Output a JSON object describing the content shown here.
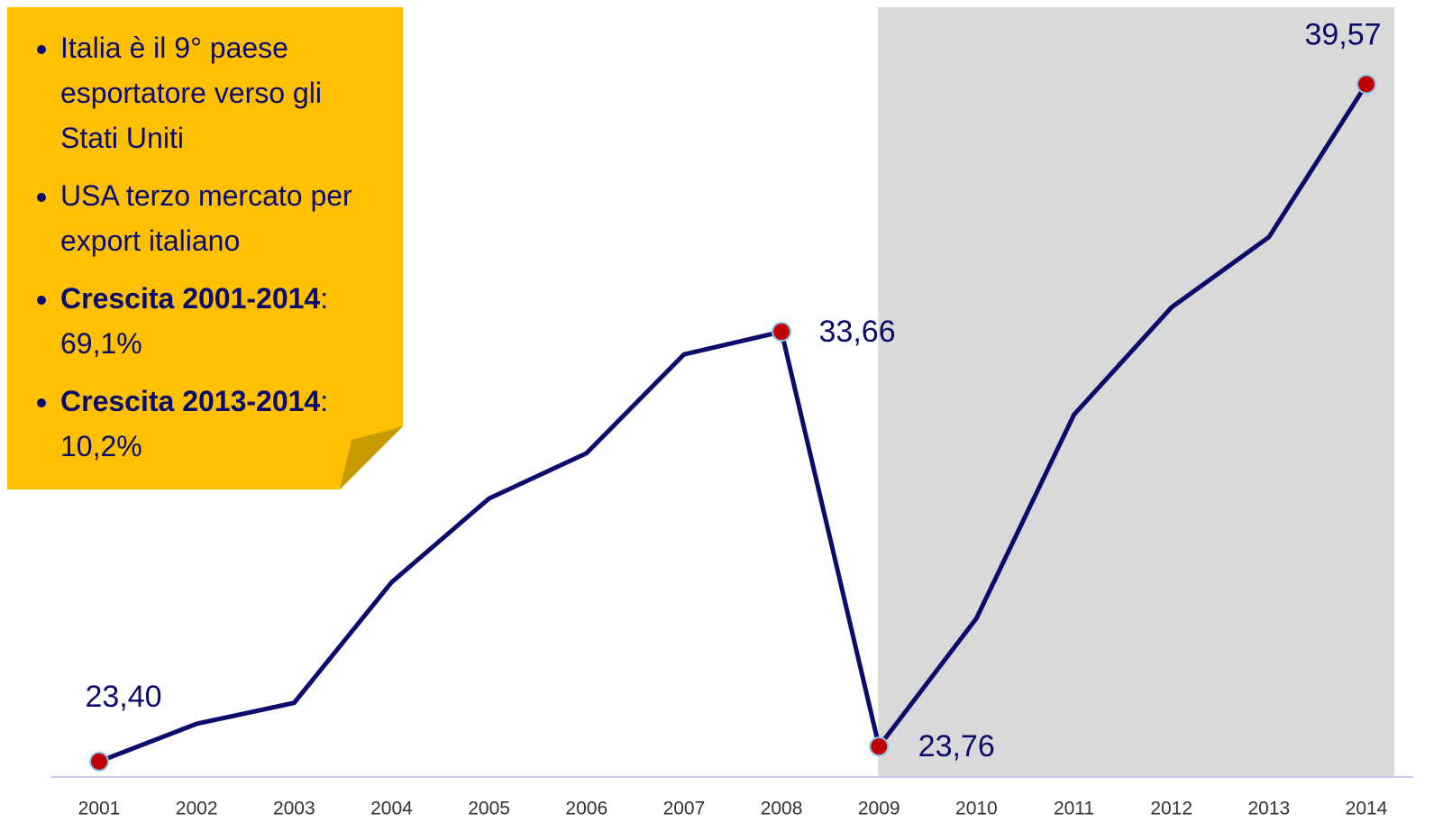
{
  "chart_data": {
    "type": "line",
    "categories": [
      "2001",
      "2002",
      "2003",
      "2004",
      "2005",
      "2006",
      "2007",
      "2008",
      "2009",
      "2010",
      "2011",
      "2012",
      "2013",
      "2014"
    ],
    "series": [
      {
        "color": "#0b0b6b",
        "values": [
          23.4,
          24.3,
          24.8,
          27.68,
          29.68,
          30.76,
          33.12,
          33.66,
          23.76,
          26.82,
          31.68,
          34.24,
          35.92,
          39.57
        ],
        "value_labels": [
          "23,40",
          null,
          null,
          null,
          null,
          null,
          null,
          "33,66",
          "23,76",
          null,
          null,
          null,
          null,
          "39,57"
        ]
      }
    ],
    "ylim": [
      23.03,
      41.58
    ],
    "highlight": {
      "categories": [
        "2009",
        "2014"
      ],
      "color": "#d9d9d9"
    },
    "note": {
      "bullets": [
        {
          "text": "Italia è il 9° paese esportatore verso gli Stati Uniti"
        },
        {
          "text": "USA terzo mercato per export italiano"
        },
        {
          "bold": "Crescita 2001-2014",
          "text": ": 69,1%"
        },
        {
          "bold": "Crescita 2013-2014",
          "text": ": 10,2%"
        }
      ]
    }
  }
}
